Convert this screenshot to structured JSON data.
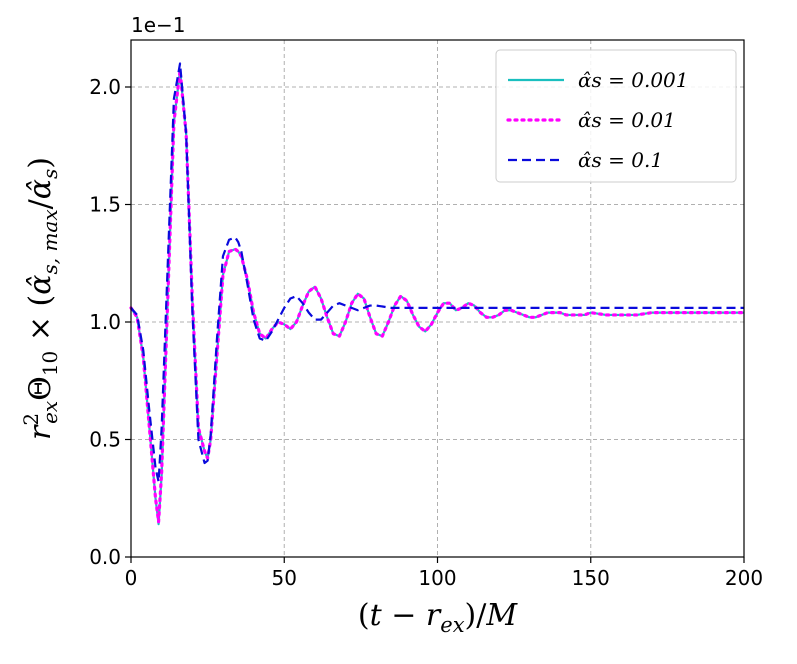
{
  "chart_data": {
    "type": "line",
    "title": "",
    "xlabel": "(t − r_ex)/M",
    "ylabel": "r²_ex Θ₁₀ × (α̂_s,max/α̂_s)",
    "y_offset_label": "1e−1",
    "xlim": [
      0,
      200
    ],
    "ylim": [
      0.0,
      2.2
    ],
    "xticks": [
      0,
      50,
      100,
      150,
      200
    ],
    "xtick_labels": [
      "0",
      "50",
      "100",
      "150",
      "200"
    ],
    "yticks": [
      0.0,
      0.5,
      1.0,
      1.5,
      2.0
    ],
    "ytick_labels": [
      "0.0",
      "0.5",
      "1.0",
      "1.5",
      "2.0"
    ],
    "grid": true,
    "legend_position": "top-right",
    "series": [
      {
        "name": "α̂s = 0.001",
        "legend_label": "α̂s = 0.001",
        "color": "#1ABFBF",
        "style": "solid",
        "x": [
          0,
          2,
          4,
          6,
          8,
          9,
          10,
          12,
          14,
          16,
          18,
          20,
          22,
          24,
          25,
          26,
          28,
          30,
          32,
          34,
          35,
          36,
          38,
          40,
          42,
          44,
          46,
          48,
          50,
          52,
          54,
          56,
          58,
          60,
          62,
          64,
          66,
          68,
          70,
          72,
          74,
          76,
          78,
          80,
          82,
          84,
          86,
          88,
          90,
          92,
          94,
          96,
          98,
          100,
          102,
          104,
          106,
          108,
          110,
          112,
          114,
          116,
          118,
          120,
          122,
          124,
          126,
          128,
          130,
          132,
          134,
          136,
          138,
          140,
          142,
          144,
          146,
          148,
          150,
          155,
          160,
          165,
          170,
          175,
          180,
          185,
          190,
          195,
          200
        ],
        "y": [
          1.06,
          1.02,
          0.85,
          0.55,
          0.25,
          0.14,
          0.35,
          1.1,
          1.85,
          2.07,
          1.8,
          1.1,
          0.55,
          0.45,
          0.42,
          0.5,
          0.85,
          1.2,
          1.3,
          1.31,
          1.3,
          1.28,
          1.18,
          1.04,
          0.95,
          0.93,
          0.97,
          1.0,
          0.99,
          0.97,
          1.0,
          1.07,
          1.13,
          1.15,
          1.1,
          1.02,
          0.95,
          0.94,
          1.0,
          1.08,
          1.12,
          1.1,
          1.02,
          0.95,
          0.94,
          1.0,
          1.07,
          1.11,
          1.09,
          1.03,
          0.98,
          0.96,
          0.99,
          1.04,
          1.08,
          1.08,
          1.05,
          1.06,
          1.08,
          1.07,
          1.04,
          1.02,
          1.02,
          1.03,
          1.05,
          1.05,
          1.04,
          1.03,
          1.02,
          1.02,
          1.03,
          1.04,
          1.04,
          1.04,
          1.03,
          1.03,
          1.03,
          1.03,
          1.04,
          1.03,
          1.03,
          1.03,
          1.04,
          1.04,
          1.04,
          1.04,
          1.04,
          1.04,
          1.04
        ]
      },
      {
        "name": "α̂s = 0.01",
        "legend_label": "α̂s = 0.01",
        "color": "#FF00FF",
        "style": "dotted",
        "x": [
          0,
          2,
          4,
          6,
          8,
          9,
          10,
          12,
          14,
          16,
          18,
          20,
          22,
          24,
          25,
          26,
          28,
          30,
          32,
          34,
          35,
          36,
          38,
          40,
          42,
          44,
          46,
          48,
          50,
          52,
          54,
          56,
          58,
          60,
          62,
          64,
          66,
          68,
          70,
          72,
          74,
          76,
          78,
          80,
          82,
          84,
          86,
          88,
          90,
          92,
          94,
          96,
          98,
          100,
          102,
          104,
          106,
          108,
          110,
          112,
          114,
          116,
          118,
          120,
          122,
          124,
          126,
          128,
          130,
          132,
          134,
          136,
          138,
          140,
          142,
          144,
          146,
          148,
          150,
          155,
          160,
          165,
          170,
          175,
          180,
          185,
          190,
          195,
          200
        ],
        "y": [
          1.06,
          1.02,
          0.85,
          0.55,
          0.25,
          0.15,
          0.36,
          1.1,
          1.85,
          2.07,
          1.8,
          1.1,
          0.55,
          0.45,
          0.42,
          0.5,
          0.85,
          1.2,
          1.3,
          1.31,
          1.3,
          1.28,
          1.18,
          1.04,
          0.95,
          0.93,
          0.97,
          1.0,
          0.99,
          0.97,
          1.0,
          1.07,
          1.13,
          1.15,
          1.1,
          1.02,
          0.95,
          0.94,
          1.0,
          1.08,
          1.12,
          1.1,
          1.02,
          0.95,
          0.94,
          1.0,
          1.07,
          1.11,
          1.09,
          1.03,
          0.98,
          0.96,
          0.99,
          1.04,
          1.08,
          1.08,
          1.05,
          1.06,
          1.08,
          1.07,
          1.04,
          1.02,
          1.02,
          1.03,
          1.05,
          1.05,
          1.04,
          1.03,
          1.02,
          1.02,
          1.03,
          1.04,
          1.04,
          1.04,
          1.03,
          1.03,
          1.03,
          1.03,
          1.04,
          1.03,
          1.03,
          1.03,
          1.04,
          1.04,
          1.04,
          1.04,
          1.04,
          1.04,
          1.04
        ]
      },
      {
        "name": "α̂s = 0.1",
        "legend_label": "α̂s = 0.1",
        "color": "#0A0ADC",
        "style": "dashed",
        "x": [
          0,
          2,
          4,
          6,
          8,
          9,
          10,
          12,
          14,
          16,
          18,
          20,
          22,
          24,
          25,
          26,
          28,
          30,
          32,
          34,
          35,
          36,
          38,
          40,
          42,
          44,
          46,
          48,
          50,
          52,
          54,
          56,
          58,
          60,
          62,
          64,
          66,
          68,
          70,
          72,
          74,
          76,
          78,
          80,
          85,
          90,
          95,
          100,
          110,
          120,
          130,
          140,
          150,
          160,
          170,
          180,
          190,
          200
        ],
        "y": [
          1.06,
          1.03,
          0.88,
          0.62,
          0.38,
          0.32,
          0.55,
          1.25,
          1.95,
          2.1,
          1.8,
          1.05,
          0.5,
          0.4,
          0.41,
          0.52,
          0.92,
          1.28,
          1.35,
          1.36,
          1.34,
          1.3,
          1.16,
          1.01,
          0.93,
          0.92,
          0.96,
          1.01,
          1.06,
          1.1,
          1.11,
          1.08,
          1.04,
          1.01,
          1.01,
          1.04,
          1.07,
          1.08,
          1.07,
          1.06,
          1.05,
          1.06,
          1.07,
          1.07,
          1.06,
          1.06,
          1.06,
          1.06,
          1.06,
          1.06,
          1.06,
          1.06,
          1.06,
          1.06,
          1.06,
          1.06,
          1.06,
          1.06
        ]
      }
    ]
  }
}
